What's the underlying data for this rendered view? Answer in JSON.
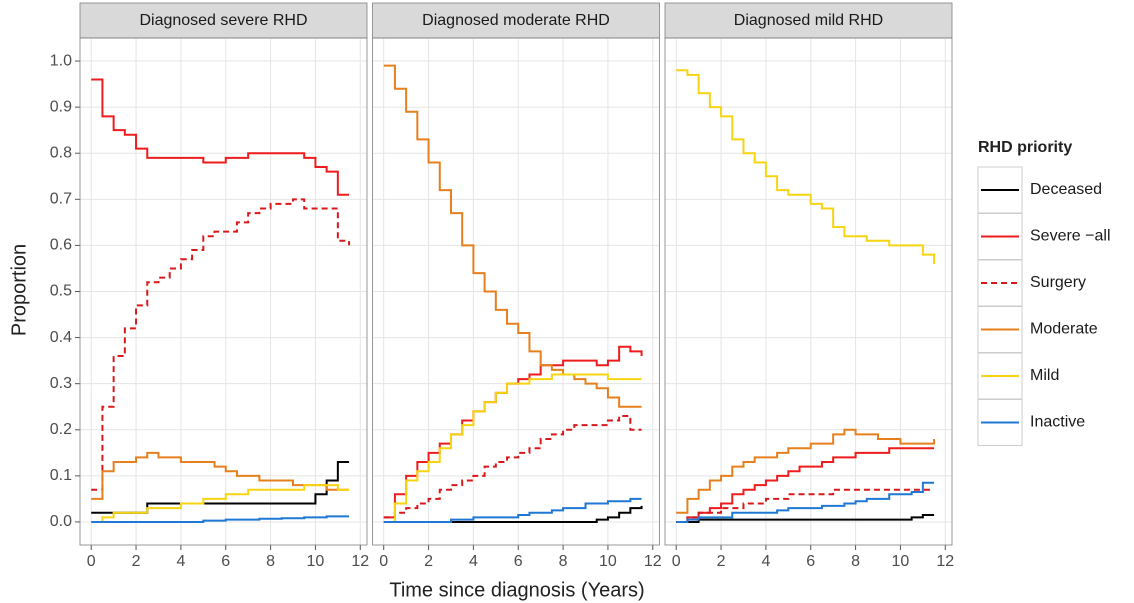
{
  "shared": {
    "xlabel": "Time since diagnosis (Years)",
    "ylabel": "Proportion",
    "legend_title": "RHD priority"
  },
  "chart_data": [
    {
      "type": "line",
      "step": true,
      "title": "Diagnosed severe RHD",
      "x": [
        0,
        0.5,
        1,
        1.5,
        2,
        2.5,
        3,
        3.5,
        4,
        4.5,
        5,
        5.5,
        6,
        6.5,
        7,
        7.5,
        8,
        8.5,
        9,
        9.5,
        10,
        10.5,
        11,
        11.5
      ],
      "xlim": [
        -0.5,
        12.3
      ],
      "xticks": [
        0,
        2,
        4,
        6,
        8,
        10,
        12
      ],
      "ylim": [
        -0.05,
        1.05
      ],
      "yticks": [
        {
          "value": 0,
          "label": "0.0"
        },
        0.1,
        0.2,
        0.3,
        0.4,
        0.5,
        0.6,
        0.7,
        0.8,
        0.9,
        {
          "value": 1,
          "label": "1.0"
        }
      ],
      "grid": true,
      "series": [
        {
          "name": "Deceased",
          "color": "#000000",
          "dashed": false,
          "values": [
            0.02,
            0.02,
            0.02,
            0.02,
            0.02,
            0.04,
            0.04,
            0.04,
            0.04,
            0.04,
            0.04,
            0.04,
            0.04,
            0.04,
            0.04,
            0.04,
            0.04,
            0.04,
            0.04,
            0.04,
            0.06,
            0.09,
            0.13,
            0.13
          ]
        },
        {
          "name": "Severe −all",
          "color": "#ee1c1c",
          "dashed": false,
          "values": [
            0.96,
            0.88,
            0.85,
            0.84,
            0.81,
            0.79,
            0.79,
            0.79,
            0.79,
            0.79,
            0.78,
            0.78,
            0.79,
            0.79,
            0.8,
            0.8,
            0.8,
            0.8,
            0.8,
            0.79,
            0.77,
            0.76,
            0.71,
            0.71
          ]
        },
        {
          "name": "Surgery",
          "color": "#d7191c",
          "dashed": true,
          "values": [
            0.07,
            0.25,
            0.36,
            0.42,
            0.47,
            0.52,
            0.53,
            0.55,
            0.57,
            0.59,
            0.62,
            0.63,
            0.63,
            0.65,
            0.67,
            0.68,
            0.69,
            0.69,
            0.7,
            0.68,
            0.68,
            0.68,
            0.61,
            0.6
          ]
        },
        {
          "name": "Moderate",
          "color": "#e6801e",
          "dashed": false,
          "values": [
            0.05,
            0.11,
            0.13,
            0.13,
            0.14,
            0.15,
            0.14,
            0.14,
            0.13,
            0.13,
            0.13,
            0.12,
            0.11,
            0.1,
            0.1,
            0.09,
            0.09,
            0.09,
            0.08,
            0.08,
            0.08,
            0.07,
            0.07,
            0.07
          ]
        },
        {
          "name": "Mild",
          "color": "#f7d411",
          "dashed": false,
          "values": [
            0,
            0.01,
            0.02,
            0.02,
            0.02,
            0.03,
            0.03,
            0.03,
            0.04,
            0.04,
            0.05,
            0.05,
            0.06,
            0.06,
            0.07,
            0.07,
            0.07,
            0.07,
            0.07,
            0.08,
            0.08,
            0.08,
            0.07,
            0.07
          ]
        },
        {
          "name": "Inactive",
          "color": "#1f78d4",
          "dashed": false,
          "values": [
            0,
            0,
            0,
            0,
            0,
            0,
            0,
            0,
            0,
            0,
            0.003,
            0.003,
            0.005,
            0.005,
            0.005,
            0.007,
            0.007,
            0.008,
            0.008,
            0.01,
            0.01,
            0.012,
            0.012,
            0.012
          ]
        }
      ]
    },
    {
      "type": "line",
      "step": true,
      "title": "Diagnosed moderate RHD",
      "x": [
        0,
        0.5,
        1,
        1.5,
        2,
        2.5,
        3,
        3.5,
        4,
        4.5,
        5,
        5.5,
        6,
        6.5,
        7,
        7.5,
        8,
        8.5,
        9,
        9.5,
        10,
        10.5,
        11,
        11.5
      ],
      "xlim": [
        -0.5,
        12.3
      ],
      "xticks": [
        0,
        2,
        4,
        6,
        8,
        10,
        12
      ],
      "ylim": [
        -0.05,
        1.05
      ],
      "yticks": [
        {
          "value": 0,
          "label": "0.0"
        },
        0.1,
        0.2,
        0.3,
        0.4,
        0.5,
        0.6,
        0.7,
        0.8,
        0.9,
        {
          "value": 1,
          "label": "1.0"
        }
      ],
      "grid": true,
      "series": [
        {
          "name": "Deceased",
          "color": "#000000",
          "dashed": false,
          "values": [
            0,
            0,
            0,
            0,
            0,
            0,
            0,
            0,
            0,
            0,
            0,
            0,
            0,
            0,
            0,
            0,
            0,
            0,
            0,
            0.005,
            0.01,
            0.02,
            0.03,
            0.035
          ]
        },
        {
          "name": "Severe −all",
          "color": "#ee1c1c",
          "dashed": false,
          "values": [
            0.01,
            0.06,
            0.1,
            0.13,
            0.15,
            0.17,
            0.19,
            0.22,
            0.24,
            0.26,
            0.28,
            0.3,
            0.31,
            0.32,
            0.34,
            0.34,
            0.35,
            0.35,
            0.35,
            0.34,
            0.35,
            0.38,
            0.37,
            0.36
          ]
        },
        {
          "name": "Surgery",
          "color": "#d7191c",
          "dashed": true,
          "values": [
            0.01,
            0.02,
            0.03,
            0.04,
            0.05,
            0.07,
            0.08,
            0.09,
            0.1,
            0.12,
            0.13,
            0.14,
            0.15,
            0.16,
            0.18,
            0.19,
            0.2,
            0.21,
            0.21,
            0.21,
            0.22,
            0.23,
            0.2,
            0.2
          ]
        },
        {
          "name": "Moderate",
          "color": "#e6801e",
          "dashed": false,
          "values": [
            0.99,
            0.94,
            0.89,
            0.83,
            0.78,
            0.72,
            0.67,
            0.6,
            0.54,
            0.5,
            0.46,
            0.43,
            0.41,
            0.37,
            0.34,
            0.33,
            0.32,
            0.31,
            0.3,
            0.29,
            0.27,
            0.25,
            0.25,
            0.25
          ]
        },
        {
          "name": "Mild",
          "color": "#f7d411",
          "dashed": false,
          "values": [
            0,
            0.04,
            0.09,
            0.11,
            0.13,
            0.16,
            0.19,
            0.21,
            0.24,
            0.26,
            0.28,
            0.3,
            0.3,
            0.31,
            0.31,
            0.32,
            0.32,
            0.32,
            0.32,
            0.32,
            0.31,
            0.31,
            0.31,
            0.31
          ]
        },
        {
          "name": "Inactive",
          "color": "#1f78d4",
          "dashed": false,
          "values": [
            0,
            0,
            0,
            0,
            0,
            0,
            0.005,
            0.005,
            0.01,
            0.01,
            0.01,
            0.01,
            0.015,
            0.02,
            0.02,
            0.025,
            0.03,
            0.03,
            0.04,
            0.04,
            0.045,
            0.045,
            0.05,
            0.05
          ]
        }
      ]
    },
    {
      "type": "line",
      "step": true,
      "title": "Diagnosed mild RHD",
      "x": [
        0,
        0.5,
        1,
        1.5,
        2,
        2.5,
        3,
        3.5,
        4,
        4.5,
        5,
        5.5,
        6,
        6.5,
        7,
        7.5,
        8,
        8.5,
        9,
        9.5,
        10,
        10.5,
        11,
        11.5
      ],
      "xlim": [
        -0.5,
        12.3
      ],
      "xticks": [
        0,
        2,
        4,
        6,
        8,
        10,
        12
      ],
      "ylim": [
        -0.05,
        1.05
      ],
      "yticks": [
        {
          "value": 0,
          "label": "0.0"
        },
        0.1,
        0.2,
        0.3,
        0.4,
        0.5,
        0.6,
        0.7,
        0.8,
        0.9,
        {
          "value": 1,
          "label": "1.0"
        }
      ],
      "grid": true,
      "series": [
        {
          "name": "Deceased",
          "color": "#000000",
          "dashed": false,
          "values": [
            0,
            0,
            0.005,
            0.005,
            0.005,
            0.005,
            0.005,
            0.005,
            0.005,
            0.005,
            0.005,
            0.005,
            0.005,
            0.005,
            0.005,
            0.005,
            0.005,
            0.005,
            0.005,
            0.005,
            0.005,
            0.01,
            0.015,
            0.015
          ]
        },
        {
          "name": "Severe −all",
          "color": "#ee1c1c",
          "dashed": false,
          "values": [
            0,
            0.01,
            0.02,
            0.03,
            0.04,
            0.06,
            0.07,
            0.08,
            0.09,
            0.1,
            0.11,
            0.12,
            0.12,
            0.13,
            0.14,
            0.14,
            0.15,
            0.15,
            0.15,
            0.16,
            0.16,
            0.16,
            0.16,
            0.16
          ]
        },
        {
          "name": "Surgery",
          "color": "#d7191c",
          "dashed": true,
          "values": [
            0,
            0.01,
            0.02,
            0.02,
            0.03,
            0.03,
            0.04,
            0.04,
            0.05,
            0.05,
            0.06,
            0.06,
            0.06,
            0.06,
            0.07,
            0.07,
            0.07,
            0.07,
            0.07,
            0.07,
            0.07,
            0.07,
            0.07,
            0.07
          ]
        },
        {
          "name": "Moderate",
          "color": "#e6801e",
          "dashed": false,
          "values": [
            0.02,
            0.05,
            0.07,
            0.09,
            0.1,
            0.12,
            0.13,
            0.14,
            0.14,
            0.15,
            0.16,
            0.16,
            0.17,
            0.17,
            0.19,
            0.2,
            0.19,
            0.19,
            0.18,
            0.18,
            0.17,
            0.17,
            0.17,
            0.18
          ]
        },
        {
          "name": "Mild",
          "color": "#f7d411",
          "dashed": false,
          "values": [
            0.98,
            0.97,
            0.93,
            0.9,
            0.88,
            0.83,
            0.8,
            0.78,
            0.75,
            0.72,
            0.71,
            0.71,
            0.69,
            0.68,
            0.64,
            0.62,
            0.62,
            0.61,
            0.61,
            0.6,
            0.6,
            0.6,
            0.58,
            0.56
          ]
        },
        {
          "name": "Inactive",
          "color": "#1f78d4",
          "dashed": false,
          "values": [
            0,
            0.005,
            0.01,
            0.01,
            0.01,
            0.02,
            0.02,
            0.02,
            0.02,
            0.025,
            0.03,
            0.03,
            0.03,
            0.035,
            0.035,
            0.04,
            0.045,
            0.05,
            0.05,
            0.06,
            0.06,
            0.065,
            0.085,
            0.085
          ]
        }
      ]
    }
  ]
}
